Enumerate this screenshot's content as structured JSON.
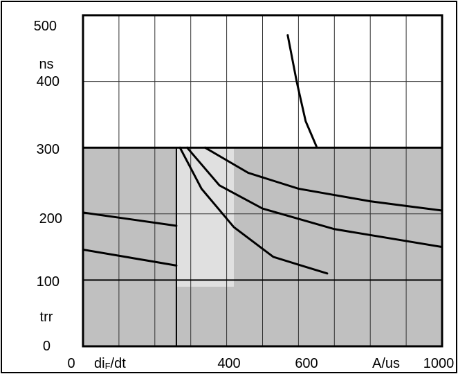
{
  "chart_data": {
    "type": "line",
    "x_unit": "A/us",
    "x_label": "diF/dt",
    "y_unit": "ns",
    "y_label": "trr",
    "xlim": [
      0,
      1000
    ],
    "ylim": [
      0,
      500
    ],
    "x_ticks": [
      {
        "value": 0,
        "label": "0"
      },
      {
        "value": 400,
        "label": "400"
      },
      {
        "value": 600,
        "label": "600"
      },
      {
        "value": 1000,
        "label": "1000"
      }
    ],
    "y_ticks": [
      {
        "value": 0,
        "label": "0"
      },
      {
        "value": 100,
        "label": "100"
      },
      {
        "value": 200,
        "label": "200"
      },
      {
        "value": 300,
        "label": "300"
      },
      {
        "value": 400,
        "label": "400"
      },
      {
        "value": 500,
        "label": "500"
      }
    ],
    "grid": true,
    "series": [
      {
        "points": [
          [
            0,
            202
          ],
          [
            260,
            182
          ]
        ]
      },
      {
        "points": [
          [
            0,
            146
          ],
          [
            260,
            122
          ]
        ]
      },
      {
        "points": [
          [
            570,
            470
          ],
          [
            595,
            400
          ],
          [
            620,
            340
          ],
          [
            650,
            302
          ]
        ]
      },
      {
        "points": [
          [
            340,
            300
          ],
          [
            460,
            262
          ],
          [
            600,
            238
          ],
          [
            800,
            219
          ],
          [
            1000,
            205
          ]
        ]
      },
      {
        "points": [
          [
            290,
            300
          ],
          [
            380,
            243
          ],
          [
            500,
            208
          ],
          [
            700,
            177
          ],
          [
            1000,
            150
          ]
        ]
      },
      {
        "points": [
          [
            270,
            300
          ],
          [
            330,
            238
          ],
          [
            420,
            180
          ],
          [
            530,
            135
          ],
          [
            680,
            110
          ]
        ]
      }
    ],
    "colors": {
      "band_gray": "#c0c0c0",
      "line": "#000000",
      "frame": "#000000",
      "grid": "#333333"
    }
  }
}
